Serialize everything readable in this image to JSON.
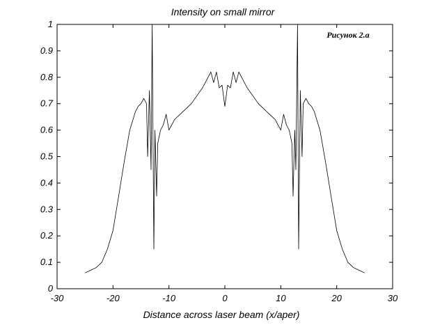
{
  "chart_data": {
    "type": "line",
    "title": "Intensity on small mirror",
    "xlabel": "Distance across laser beam (x/aper)",
    "ylabel": "",
    "annotation": "Рисунок 2.а",
    "xlim": [
      -30,
      30
    ],
    "ylim": [
      0,
      1
    ],
    "xticks": [
      "-30",
      "-20",
      "-10",
      "0",
      "10",
      "20",
      "30"
    ],
    "yticks": [
      "0",
      "0.1",
      "0.2",
      "0.3",
      "0.4",
      "0.5",
      "0.6",
      "0.7",
      "0.8",
      "0.9",
      "1"
    ],
    "grid": false,
    "line_color": "#000000",
    "series": [
      {
        "x": [
          -25,
          -24,
          -23,
          -22,
          -21,
          -20,
          -19,
          -18,
          -17,
          -16,
          -15.5,
          -15,
          -14.5,
          -14,
          -13.8,
          -13.5,
          -13.2,
          -13,
          -12.7,
          -12.5,
          -12.2,
          -12,
          -11.5,
          -11,
          -10.5,
          -10,
          -9,
          -8,
          -7,
          -6,
          -5,
          -4,
          -3,
          -2.5,
          -2,
          -1.5,
          -1,
          -0.5,
          0,
          0.5,
          1,
          1.5,
          2,
          2.5,
          3,
          4,
          5,
          6,
          7,
          8,
          9,
          10,
          10.5,
          11,
          11.5,
          12,
          12.2,
          12.5,
          12.7,
          13,
          13.2,
          13.5,
          13.8,
          14,
          14.5,
          15,
          15.5,
          16,
          17,
          18,
          19,
          20,
          21,
          22,
          23,
          24,
          25
        ],
        "y": [
          0.06,
          0.07,
          0.08,
          0.1,
          0.15,
          0.22,
          0.35,
          0.48,
          0.6,
          0.67,
          0.69,
          0.7,
          0.72,
          0.7,
          0.5,
          0.75,
          0.45,
          1.0,
          0.15,
          0.6,
          0.35,
          0.55,
          0.6,
          0.62,
          0.66,
          0.6,
          0.64,
          0.66,
          0.68,
          0.7,
          0.73,
          0.76,
          0.8,
          0.82,
          0.78,
          0.82,
          0.76,
          0.77,
          0.69,
          0.77,
          0.76,
          0.82,
          0.78,
          0.82,
          0.8,
          0.76,
          0.73,
          0.7,
          0.68,
          0.66,
          0.64,
          0.6,
          0.66,
          0.62,
          0.6,
          0.55,
          0.35,
          0.6,
          0.45,
          1.0,
          0.15,
          0.75,
          0.5,
          0.7,
          0.72,
          0.7,
          0.69,
          0.67,
          0.6,
          0.48,
          0.35,
          0.22,
          0.15,
          0.1,
          0.08,
          0.07,
          0.06
        ]
      }
    ]
  }
}
